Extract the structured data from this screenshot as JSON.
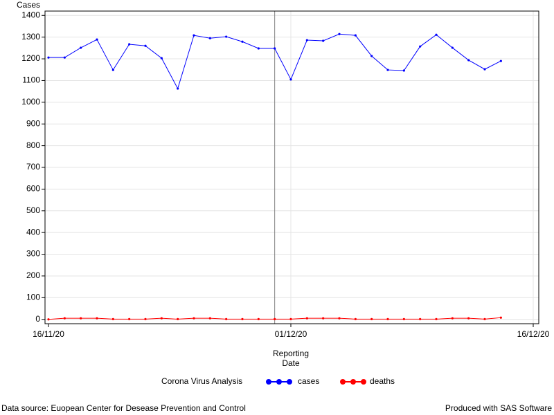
{
  "chart_data": {
    "type": "line",
    "ylabel": "Cases",
    "xlabel": "Reporting Date",
    "legend_title": "Corona Virus Analysis",
    "x": [
      "2020-11-16",
      "2020-11-17",
      "2020-11-18",
      "2020-11-19",
      "2020-11-20",
      "2020-11-21",
      "2020-11-22",
      "2020-11-23",
      "2020-11-24",
      "2020-11-25",
      "2020-11-26",
      "2020-11-27",
      "2020-11-28",
      "2020-11-29",
      "2020-11-30",
      "2020-12-01",
      "2020-12-02",
      "2020-12-03",
      "2020-12-04",
      "2020-12-05",
      "2020-12-06",
      "2020-12-07",
      "2020-12-08",
      "2020-12-09",
      "2020-12-10",
      "2020-12-11",
      "2020-12-12",
      "2020-12-13",
      "2020-12-14"
    ],
    "series": [
      {
        "name": "cases",
        "color": "#0000ff",
        "values": [
          1206,
          1206,
          1251,
          1289,
          1149,
          1267,
          1260,
          1203,
          1063,
          1308,
          1295,
          1302,
          1279,
          1248,
          1248,
          1105,
          1286,
          1283,
          1314,
          1308,
          1213,
          1149,
          1146,
          1257,
          1311,
          1251,
          1194,
          1152,
          1190
        ]
      },
      {
        "name": "deaths",
        "color": "#ff0000",
        "values": [
          0,
          5,
          5,
          5,
          1,
          1,
          1,
          5,
          1,
          5,
          5,
          1,
          1,
          1,
          1,
          1,
          5,
          5,
          5,
          1,
          1,
          1,
          1,
          1,
          1,
          5,
          5,
          1,
          8
        ]
      }
    ],
    "xlim": [
      "2020-11-16",
      "2020-12-16"
    ],
    "xticks": [
      {
        "value": "2020-11-16",
        "label": "16/11/20"
      },
      {
        "value": "2020-12-01",
        "label": "01/12/20"
      },
      {
        "value": "2020-12-16",
        "label": "16/12/20"
      }
    ],
    "ylim": [
      -20,
      1420
    ],
    "yticks": [
      0,
      100,
      200,
      300,
      400,
      500,
      600,
      700,
      800,
      900,
      1000,
      1100,
      1200,
      1300,
      1400
    ],
    "reference_line_x": "2020-11-30",
    "grid": true,
    "legend": "bottom",
    "footnote_left": "Data source: Euopean Center for Desease Prevention and Control",
    "footnote_right": "Produced with SAS Software"
  }
}
